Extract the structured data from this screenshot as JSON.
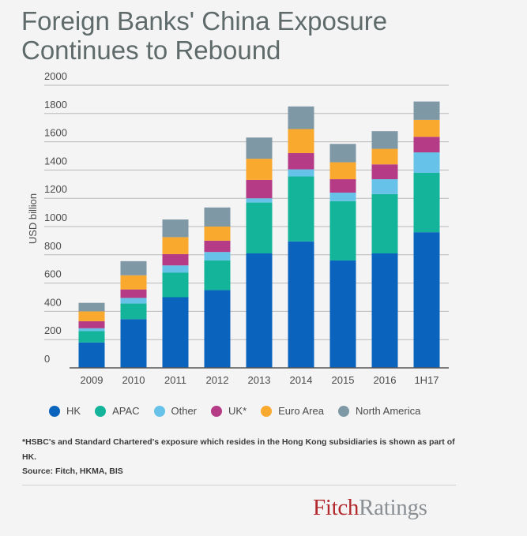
{
  "title_line1": "Foreign Banks' China Exposure",
  "title_line2": "Continues to Rebound",
  "footnote": "*HSBC's and Standard Chartered's exposure which resides in the Hong Kong subsidiaries is shown as part of HK.",
  "source": "Source: Fitch, HKMA, BIS",
  "logo": {
    "fitch": "Fitch",
    "ratings": "Ratings"
  },
  "chart_data": {
    "type": "bar",
    "stacked": true,
    "categories": [
      "2009",
      "2010",
      "2011",
      "2012",
      "2013",
      "2014",
      "2015",
      "2016",
      "1H17"
    ],
    "ylabel": "USD billion",
    "ylim": [
      0,
      2000
    ],
    "yticks": [
      "0",
      "200",
      "400",
      "600",
      "800",
      "1000",
      "1200",
      "1400",
      "1600",
      "1800",
      "2000"
    ],
    "grid": true,
    "legend_position": "bottom",
    "series": [
      {
        "name": "HK",
        "color": "#0a64bd",
        "values": [
          180,
          345,
          500,
          550,
          810,
          895,
          760,
          810,
          960
        ]
      },
      {
        "name": "APAC",
        "color": "#13b49a",
        "values": [
          80,
          110,
          175,
          210,
          360,
          460,
          420,
          420,
          420
        ]
      },
      {
        "name": "Other",
        "color": "#66c2e8",
        "values": [
          20,
          40,
          50,
          60,
          30,
          50,
          60,
          105,
          145
        ]
      },
      {
        "name": "UK*",
        "color": "#b53b86",
        "values": [
          50,
          60,
          80,
          80,
          130,
          115,
          95,
          105,
          110
        ]
      },
      {
        "name": "Euro Area",
        "color": "#f9a92e",
        "values": [
          70,
          100,
          120,
          100,
          150,
          170,
          120,
          110,
          120
        ]
      },
      {
        "name": "North America",
        "color": "#7e98a6",
        "values": [
          60,
          100,
          125,
          135,
          150,
          160,
          130,
          125,
          130
        ]
      }
    ]
  }
}
